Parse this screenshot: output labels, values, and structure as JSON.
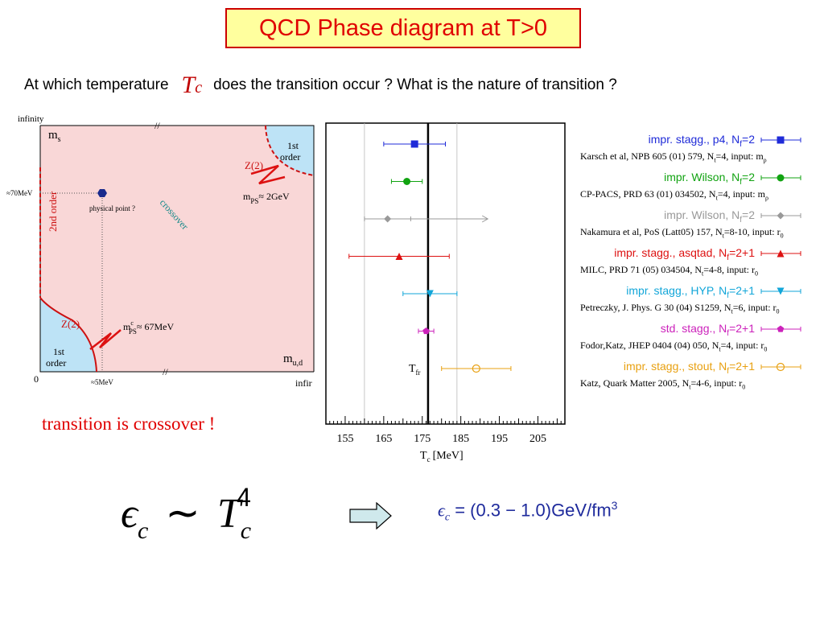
{
  "title": "QCD Phase diagram at T>0",
  "question": {
    "part1": "At which temperature",
    "tc_symbol": "T",
    "tc_sub": "c",
    "part2": "does the transition occur ?  What is the nature of transition ?"
  },
  "phase_diagram": {
    "axis_top_label": "infinity",
    "axis_right_label": "infir",
    "origin_label": "0",
    "ms_label": "m",
    "ms_sub": "s",
    "mud_label": "m",
    "mud_sub": "u,d",
    "ms_mark": "≈70MeV",
    "mud_mark": "≈5MeV",
    "physical_point": "physical point ?",
    "crossover": "crossover",
    "second_order": "2nd order",
    "first_order_top_line1": "1st",
    "first_order_top_line2": "order",
    "first_order_bottom_line1": "1st",
    "first_order_bottom_line2": "order",
    "z2_top": "Z(2)",
    "z2_bottom": "Z(2)",
    "mps_top": "m",
    "mps_top_sub": "PS",
    "mps_top_val": "≈ 2GeV",
    "mps_bottom": "m",
    "mps_bottom_sup": "c",
    "mps_bottom_sub": "PS",
    "mps_bottom_val": "≈ 67MeV",
    "break_mark": "//",
    "colors": {
      "region": "#f9d7d7",
      "first_order": "#bde3f6",
      "line": "#cc1111",
      "crossover": "#118888"
    }
  },
  "crossover_note": "transition is crossover !",
  "chart_data": {
    "type": "scatter",
    "xlabel": "T",
    "xlabel_sub": "c",
    "xlabel_unit": "[MeV]",
    "xlim": [
      150,
      212
    ],
    "xticks": [
      155,
      165,
      175,
      185,
      195,
      205
    ],
    "vline": {
      "x": 176.5,
      "label": "T",
      "label_sub": "fr"
    },
    "dotted_lines": [
      160,
      184
    ],
    "series": [
      {
        "name": "impr. stagg., p4,  N",
        "name_sub": "f",
        "name_suffix": "=2",
        "color": "#1f2bd8",
        "marker": "square",
        "x": 173,
        "xerr_low": 165,
        "xerr_high": 181,
        "ref": "Karsch et al, NPB 605 (01) 579, N",
        "ref_sub": "t",
        "ref_suffix": "=4, input: m",
        "ref_sub2": "ρ"
      },
      {
        "name": "impr. Wilson, N",
        "name_sub": "f",
        "name_suffix": "=2",
        "color": "#11a311",
        "marker": "circle",
        "x": 171,
        "xerr_low": 167,
        "xerr_high": 175,
        "ref": "CP-PACS, PRD 63 (01) 034502, N",
        "ref_sub": "t",
        "ref_suffix": "=4, input: m",
        "ref_sub2": "ρ"
      },
      {
        "name": "impr. Wilson, N",
        "name_sub": "f",
        "name_suffix": "=2",
        "color": "#999999",
        "marker": "diamond",
        "x": 166,
        "xerr_low": 160,
        "xerr_high": 172,
        "arrow_to": 192,
        "ref": "Nakamura et al, PoS (Latt05) 157, N",
        "ref_sub": "t",
        "ref_suffix": "=8-10, input: r",
        "ref_sub2": "0"
      },
      {
        "name": "impr. stagg., asqtad, N",
        "name_sub": "f",
        "name_suffix": "=2+1",
        "color": "#dd1111",
        "marker": "triangle-up",
        "x": 169,
        "xerr_low": 156,
        "xerr_high": 182,
        "ref": "MILC, PRD 71 (05) 034504, N",
        "ref_sub": "t",
        "ref_suffix": "=4-8, input: r",
        "ref_sub2": "0"
      },
      {
        "name": "impr. stagg., HYP, N",
        "name_sub": "f",
        "name_suffix": "=2+1",
        "color": "#12a6d9",
        "marker": "triangle-down",
        "x": 177,
        "xerr_low": 170,
        "xerr_high": 184,
        "ref": "Petreczky, J. Phys. G 30 (04) S1259, N",
        "ref_sub": "t",
        "ref_suffix": "=6, input: r",
        "ref_sub2": "0"
      },
      {
        "name": "std. stagg., N",
        "name_sub": "f",
        "name_suffix": "=2+1",
        "color": "#cc22bb",
        "marker": "pentagon",
        "x": 176,
        "xerr_low": 174,
        "xerr_high": 178,
        "ref": "Fodor,Katz, JHEP 0404 (04) 050, N",
        "ref_sub": "t",
        "ref_suffix": "=4, input: r",
        "ref_sub2": "0"
      },
      {
        "name": "impr. stagg., stout, N",
        "name_sub": "f",
        "name_suffix": "=2+1",
        "color": "#e8a010",
        "marker": "open-circle",
        "x": 189,
        "xerr_low": 180,
        "xerr_high": 198,
        "ref": "Katz, Quark Matter 2005, N",
        "ref_sub": "t",
        "ref_suffix": "=4-6, input: r",
        "ref_sub2": "0"
      }
    ]
  },
  "formula": {
    "eps": "ϵ",
    "eps_sub": "c",
    "sim": "∼",
    "T": "T",
    "T_sub": "c",
    "T_sup": "4"
  },
  "result": {
    "eps": "ϵ",
    "eps_sub": "c",
    "eq": "= (0.3 − 1.0)GeV/fm",
    "sup": "3"
  }
}
